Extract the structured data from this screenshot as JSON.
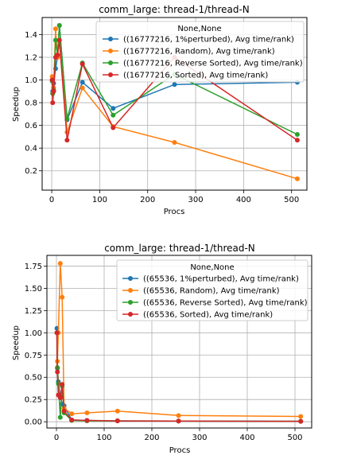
{
  "chart_data": [
    {
      "type": "line",
      "title": "comm_large: thread-1/thread-N",
      "xlabel": "Procs",
      "ylabel": "Speedup",
      "xlim": [
        -20,
        532
      ],
      "ylim": [
        0.03,
        1.55
      ],
      "xticks": [
        0,
        100,
        200,
        300,
        400,
        500
      ],
      "yticks": [
        0.2,
        0.4,
        0.6,
        0.8,
        1.0,
        1.2,
        1.4
      ],
      "xtick_labels": [
        "0",
        "100",
        "200",
        "300",
        "400",
        "500"
      ],
      "ytick_labels": [
        "0.2",
        "0.4",
        "0.6",
        "0.8",
        "1.0",
        "1.2",
        "1.4"
      ],
      "grid": true,
      "legend_title": "None,None",
      "legend_placement": "top-right",
      "series": [
        {
          "name": "((16777216, 1%perturbed), Avg time/rank)",
          "color": "#1f77b4",
          "x": [
            1,
            2,
            4,
            8,
            12,
            16,
            32,
            64,
            128,
            256,
            512
          ],
          "y": [
            1.0,
            0.9,
            0.97,
            1.1,
            1.2,
            1.48,
            0.65,
            0.98,
            0.75,
            0.96,
            0.98
          ]
        },
        {
          "name": "((16777216, Random), Avg time/rank)",
          "color": "#ff7f0e",
          "x": [
            1,
            2,
            4,
            8,
            12,
            16,
            32,
            64,
            128,
            256,
            512
          ],
          "y": [
            1.03,
            0.88,
            0.93,
            1.45,
            1.2,
            1.35,
            0.54,
            0.93,
            0.59,
            0.45,
            0.13
          ]
        },
        {
          "name": "((16777216, Reverse Sorted), Avg time/rank)",
          "color": "#2ca02c",
          "x": [
            1,
            2,
            4,
            8,
            12,
            16,
            32,
            64,
            128,
            256,
            512
          ],
          "y": [
            0.99,
            0.88,
            0.91,
            1.35,
            1.22,
            1.48,
            0.66,
            1.15,
            0.69,
            1.05,
            0.52
          ]
        },
        {
          "name": "((16777216, Sorted), Avg time/rank)",
          "color": "#d62728",
          "x": [
            1,
            2,
            4,
            8,
            12,
            16,
            32,
            64,
            128,
            256,
            512
          ],
          "y": [
            1.0,
            0.8,
            0.9,
            1.2,
            1.22,
            1.35,
            0.47,
            1.14,
            0.58,
            1.2,
            0.47
          ]
        }
      ]
    },
    {
      "type": "line",
      "title": "comm_large: thread-1/thread-N",
      "xlabel": "Procs",
      "ylabel": "Speedup",
      "xlim": [
        -20,
        535
      ],
      "ylim": [
        -0.07,
        1.87
      ],
      "xticks": [
        0,
        100,
        200,
        300,
        400,
        500
      ],
      "yticks": [
        0.0,
        0.25,
        0.5,
        0.75,
        1.0,
        1.25,
        1.5,
        1.75
      ],
      "xtick_labels": [
        "0",
        "100",
        "200",
        "300",
        "400",
        "500"
      ],
      "ytick_labels": [
        "0.00",
        "0.25",
        "0.50",
        "0.75",
        "1.00",
        "1.25",
        "1.50",
        "1.75"
      ],
      "grid": true,
      "legend_title": "None,None",
      "legend_placement": "top-right",
      "series": [
        {
          "name": "((65536, 1%perturbed), Avg time/rank)",
          "color": "#1f77b4",
          "x": [
            1,
            2,
            4,
            8,
            12,
            16,
            32,
            64,
            128,
            256,
            512
          ],
          "y": [
            1.05,
            0.6,
            0.45,
            0.28,
            0.2,
            0.18,
            0.02,
            0.015,
            0.01,
            0.008,
            0.005
          ]
        },
        {
          "name": "((65536, Random), Avg time/rank)",
          "color": "#ff7f0e",
          "x": [
            1,
            2,
            4,
            8,
            12,
            16,
            32,
            64,
            128,
            256,
            512
          ],
          "y": [
            1.0,
            0.68,
            1.0,
            1.78,
            1.4,
            0.15,
            0.09,
            0.1,
            0.12,
            0.07,
            0.06
          ]
        },
        {
          "name": "((65536, Reverse Sorted), Avg time/rank)",
          "color": "#2ca02c",
          "x": [
            1,
            2,
            4,
            8,
            12,
            16,
            32,
            64,
            128,
            256,
            512
          ],
          "y": [
            1.0,
            0.61,
            0.43,
            0.05,
            0.4,
            0.1,
            0.015,
            0.01,
            0.01,
            0.008,
            0.005
          ]
        },
        {
          "name": "((65536, Sorted), Avg time/rank)",
          "color": "#d62728",
          "x": [
            1,
            2,
            4,
            8,
            12,
            16,
            32,
            64,
            128,
            256,
            512
          ],
          "y": [
            1.0,
            0.56,
            0.3,
            0.27,
            0.42,
            0.12,
            0.02,
            0.015,
            0.01,
            0.008,
            0.005
          ]
        }
      ]
    }
  ]
}
